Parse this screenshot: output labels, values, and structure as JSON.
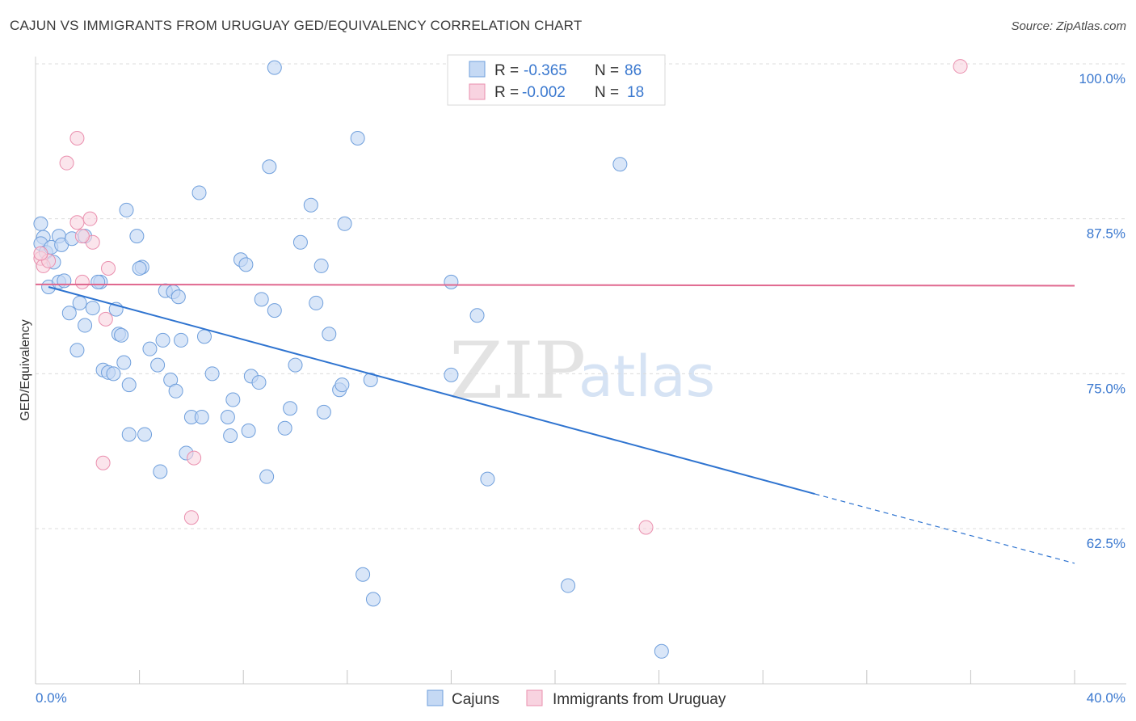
{
  "header": {
    "title": "CAJUN VS IMMIGRANTS FROM URUGUAY GED/EQUIVALENCY CORRELATION CHART",
    "source": "Source: ZipAtlas.com"
  },
  "watermark": {
    "zip": "ZIP",
    "atlas": "atlas"
  },
  "legend_top": {
    "rows": [
      {
        "r_label": "R =",
        "r_value": "-0.365",
        "n_label": "N =",
        "n_value": "86"
      },
      {
        "r_label": "R =",
        "r_value": "-0.002",
        "n_label": "N =",
        "n_value": "18"
      }
    ]
  },
  "colors": {
    "cajuns": "#6f9fdc",
    "cajuns_fill": "#c5d9f4",
    "uruguay": "#ea8fae",
    "uruguay_fill": "#f8d3e0",
    "cajuns_line": "#2f74d0",
    "uruguay_line": "#e0688f",
    "tick_text": "#3a78cf"
  },
  "chart_data": {
    "type": "scatter",
    "title": "CAJUN VS IMMIGRANTS FROM URUGUAY GED/EQUIVALENCY CORRELATION CHART",
    "xlabel": "",
    "ylabel": "GED/Equivalency",
    "xlim": [
      0,
      40
    ],
    "ylim": [
      50,
      101
    ],
    "x_tick_labels": [
      "0.0%",
      "40.0%"
    ],
    "y_ticks": [
      62.5,
      75.0,
      87.5,
      100.0
    ],
    "y_tick_labels": [
      "62.5%",
      "75.0%",
      "87.5%",
      "100.0%"
    ],
    "grid": true,
    "legend_position": "bottom-center",
    "series": [
      {
        "name": "Cajuns",
        "R": -0.365,
        "N": 86,
        "trend": {
          "x0": 0.5,
          "y0": 82.0,
          "x1": 30.0,
          "y1": 65.3,
          "dash_to_x": 40.0,
          "dash_to_y": 59.7
        },
        "points": [
          [
            0.2,
            87.1
          ],
          [
            0.3,
            86.0
          ],
          [
            0.2,
            85.5
          ],
          [
            0.4,
            84.8
          ],
          [
            0.6,
            85.2
          ],
          [
            0.7,
            84.0
          ],
          [
            0.9,
            86.1
          ],
          [
            1.0,
            85.4
          ],
          [
            1.9,
            86.1
          ],
          [
            1.4,
            85.9
          ],
          [
            0.5,
            82.0
          ],
          [
            0.9,
            82.4
          ],
          [
            1.1,
            82.5
          ],
          [
            1.3,
            79.9
          ],
          [
            1.7,
            80.7
          ],
          [
            1.9,
            78.9
          ],
          [
            2.2,
            80.3
          ],
          [
            1.6,
            76.9
          ],
          [
            2.5,
            82.4
          ],
          [
            2.4,
            82.4
          ],
          [
            3.5,
            88.2
          ],
          [
            3.9,
            86.1
          ],
          [
            4.1,
            83.6
          ],
          [
            4.0,
            83.5
          ],
          [
            2.6,
            75.3
          ],
          [
            2.8,
            75.1
          ],
          [
            3.0,
            75.0
          ],
          [
            3.1,
            80.2
          ],
          [
            3.2,
            78.2
          ],
          [
            3.3,
            78.1
          ],
          [
            3.4,
            75.9
          ],
          [
            3.6,
            74.1
          ],
          [
            4.4,
            77.0
          ],
          [
            4.7,
            75.7
          ],
          [
            4.9,
            77.7
          ],
          [
            5.0,
            81.7
          ],
          [
            5.3,
            81.6
          ],
          [
            5.5,
            81.2
          ],
          [
            5.2,
            74.5
          ],
          [
            5.6,
            77.7
          ],
          [
            5.4,
            73.6
          ],
          [
            6.3,
            89.6
          ],
          [
            6.8,
            75.0
          ],
          [
            6.5,
            78.0
          ],
          [
            6.0,
            71.5
          ],
          [
            6.4,
            71.5
          ],
          [
            7.4,
            71.5
          ],
          [
            7.6,
            72.9
          ],
          [
            7.9,
            84.2
          ],
          [
            8.1,
            83.8
          ],
          [
            8.3,
            74.8
          ],
          [
            8.6,
            74.3
          ],
          [
            8.7,
            81.0
          ],
          [
            8.2,
            70.4
          ],
          [
            7.5,
            70.0
          ],
          [
            5.8,
            68.6
          ],
          [
            8.9,
            66.7
          ],
          [
            9.0,
            91.7
          ],
          [
            9.2,
            80.1
          ],
          [
            9.6,
            70.6
          ],
          [
            9.8,
            72.2
          ],
          [
            10.0,
            75.7
          ],
          [
            10.2,
            85.6
          ],
          [
            10.6,
            88.6
          ],
          [
            10.8,
            80.7
          ],
          [
            11.0,
            83.7
          ],
          [
            11.1,
            71.9
          ],
          [
            11.3,
            78.2
          ],
          [
            11.7,
            73.7
          ],
          [
            11.9,
            87.1
          ],
          [
            12.4,
            94.0
          ],
          [
            11.8,
            74.1
          ],
          [
            12.9,
            74.5
          ],
          [
            12.6,
            58.8
          ],
          [
            13.0,
            56.8
          ],
          [
            16.0,
            82.4
          ],
          [
            16.0,
            74.9
          ],
          [
            17.0,
            79.7
          ],
          [
            17.4,
            66.5
          ],
          [
            20.5,
            57.9
          ],
          [
            22.5,
            91.9
          ],
          [
            24.1,
            52.6
          ],
          [
            9.2,
            99.7
          ],
          [
            4.8,
            67.1
          ],
          [
            4.2,
            70.1
          ],
          [
            3.6,
            70.1
          ]
        ]
      },
      {
        "name": "Immigrants from Uruguay",
        "R": -0.002,
        "N": 18,
        "trend": {
          "x0": 0.0,
          "y0": 82.2,
          "x1": 40.0,
          "y1": 82.1
        },
        "points": [
          [
            0.2,
            84.3
          ],
          [
            0.3,
            83.7
          ],
          [
            0.5,
            84.1
          ],
          [
            1.6,
            94.0
          ],
          [
            1.2,
            92.0
          ],
          [
            1.6,
            87.2
          ],
          [
            2.1,
            87.5
          ],
          [
            2.2,
            85.6
          ],
          [
            1.8,
            86.1
          ],
          [
            2.8,
            83.5
          ],
          [
            1.8,
            82.4
          ],
          [
            2.7,
            79.4
          ],
          [
            2.6,
            67.8
          ],
          [
            6.1,
            68.2
          ],
          [
            6.0,
            63.4
          ],
          [
            23.5,
            62.6
          ],
          [
            35.6,
            99.8
          ],
          [
            0.2,
            84.7
          ]
        ]
      }
    ]
  },
  "legend_bottom": {
    "items": [
      "Cajuns",
      "Immigrants from Uruguay"
    ]
  }
}
